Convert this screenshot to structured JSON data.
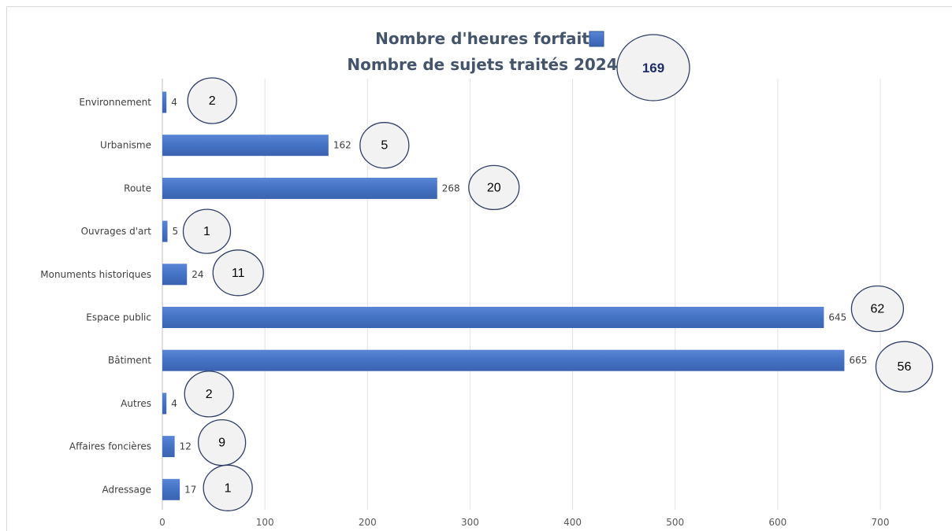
{
  "chart_data": {
    "type": "bar",
    "orientation": "horizontal",
    "title": "Nombre d'heures forfait",
    "subtitle": "Nombre de sujets traités 2024",
    "total_subjects": "169",
    "categories": [
      "Environnement",
      "Urbanisme",
      "Route",
      "Ouvrages d'art",
      "Monuments historiques",
      "Espace public",
      "Bâtiment",
      "Autres",
      "Affaires foncières",
      "Adressage"
    ],
    "series": [
      {
        "name": "Nombre d'heures forfait",
        "values": [
          4,
          162,
          268,
          5,
          24,
          645,
          665,
          4,
          12,
          17
        ]
      }
    ],
    "subjects_count": [
      2,
      5,
      20,
      1,
      11,
      62,
      56,
      2,
      9,
      1
    ],
    "xlim": [
      0,
      700
    ],
    "xticks": [
      0,
      100,
      200,
      300,
      400,
      500,
      600,
      700
    ],
    "grid": true,
    "bar_color": "#4472c4",
    "bubble_fill": "#f2f2f2",
    "bubble_stroke": "#2f3f66",
    "legend_placement": "top"
  }
}
